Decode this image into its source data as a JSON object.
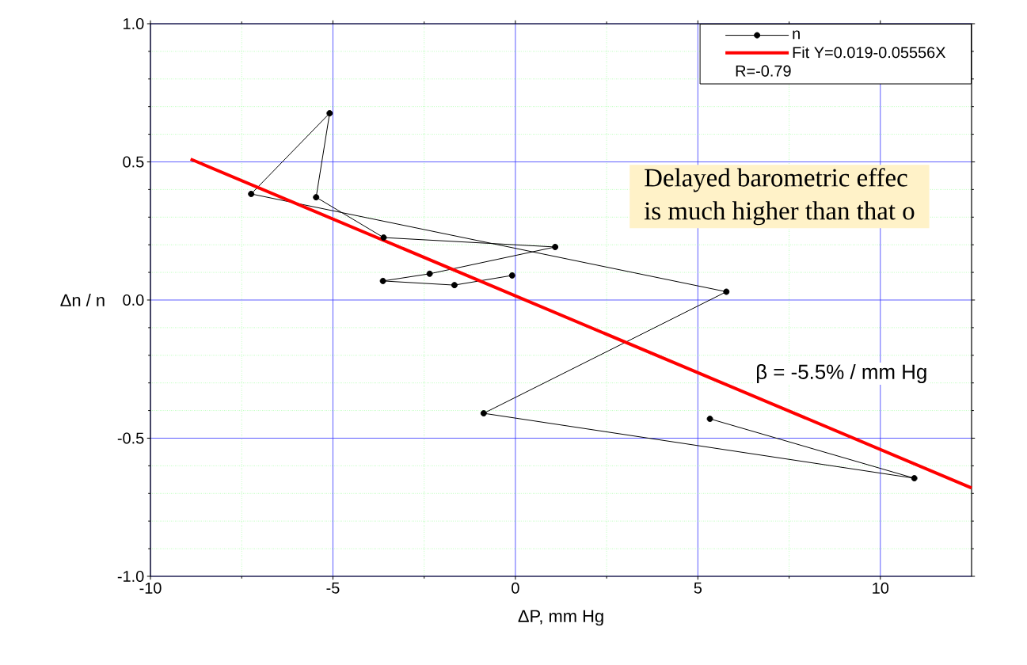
{
  "chart_data": {
    "type": "line",
    "xlabel": "ΔP, mm Hg",
    "ylabel": "Δn / n",
    "xlim": [
      -10,
      12.5
    ],
    "xticks": [
      -10,
      -5,
      0,
      5,
      10,
      {
        "value": -7.5,
        "label": null
      },
      {
        "value": -2.5,
        "label": null
      },
      {
        "value": 2.5,
        "label": null
      },
      {
        "value": 7.5,
        "label": null
      }
    ],
    "ylim": [
      -1,
      1
    ],
    "yticks": [
      {
        "value": -1,
        "label": "-1.0"
      },
      {
        "value": -0.5,
        "label": "-0.5"
      },
      {
        "value": 0,
        "label": "0.0"
      },
      {
        "value": 0.5,
        "label": "0.5"
      },
      {
        "value": 1,
        "label": "1.0"
      },
      {
        "value": -0.9,
        "label": null
      },
      {
        "value": -0.8,
        "label": null
      },
      {
        "value": -0.7,
        "label": null
      },
      {
        "value": -0.6,
        "label": null
      },
      {
        "value": -0.4,
        "label": null
      },
      {
        "value": -0.3,
        "label": null
      },
      {
        "value": -0.2,
        "label": null
      },
      {
        "value": -0.1,
        "label": null
      },
      {
        "value": 0.1,
        "label": null
      },
      {
        "value": 0.2,
        "label": null
      },
      {
        "value": 0.3,
        "label": null
      },
      {
        "value": 0.4,
        "label": null
      },
      {
        "value": 0.6,
        "label": null
      },
      {
        "value": 0.7,
        "label": null
      },
      {
        "value": 0.8,
        "label": null
      },
      {
        "value": 0.9,
        "label": null
      }
    ],
    "grid": true,
    "legend": "top right",
    "series": [
      {
        "name": "n",
        "color": "#000000",
        "marker": "circle",
        "x": [
          -0.09,
          -1.67,
          -3.63,
          -2.35,
          1.09,
          -3.61,
          -5.46,
          -5.09,
          -7.24,
          5.78,
          -0.87,
          10.93,
          5.33
        ],
        "values": [
          0.089,
          0.054,
          0.069,
          0.095,
          0.192,
          0.226,
          0.372,
          0.676,
          0.384,
          0.03,
          -0.41,
          -0.645,
          -0.43
        ]
      },
      {
        "name": "Fit Y=0.019-0.05556X",
        "color": "#ff0000",
        "marker": "none",
        "x": [
          -8.9,
          12.5
        ],
        "values": [
          0.51,
          -0.68
        ]
      }
    ],
    "annotations": [
      "R=-0.79",
      "β = -5.5% / mm Hg",
      "Delayed barometric effec",
      "is much higher than that o"
    ]
  }
}
